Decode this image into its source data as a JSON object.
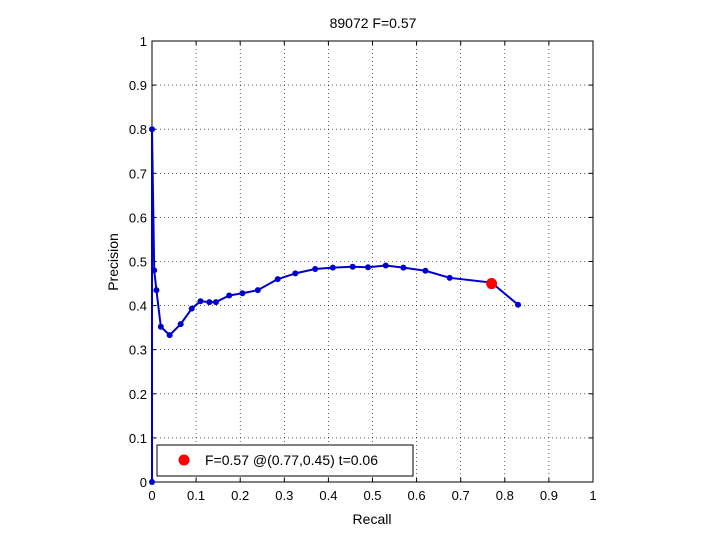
{
  "chart_data": {
    "type": "line",
    "title": "89072 F=0.57",
    "xlabel": "Recall",
    "ylabel": "Precision",
    "xlim": [
      0,
      1
    ],
    "ylim": [
      0,
      1
    ],
    "xticks": [
      "0",
      "0.1",
      "0.2",
      "0.3",
      "0.4",
      "0.5",
      "0.6",
      "0.7",
      "0.8",
      "0.9",
      "1"
    ],
    "yticks": [
      "0",
      "0.1",
      "0.2",
      "0.3",
      "0.4",
      "0.5",
      "0.6",
      "0.7",
      "0.8",
      "0.9",
      "1"
    ],
    "grid": true,
    "legend_position": "bottom-left",
    "series": [
      {
        "color": "#0000cc",
        "x": [
          0.0,
          0.0,
          0.005,
          0.01,
          0.02,
          0.04,
          0.065,
          0.09,
          0.11,
          0.13,
          0.145,
          0.175,
          0.205,
          0.24,
          0.285,
          0.325,
          0.37,
          0.41,
          0.455,
          0.49,
          0.53,
          0.57,
          0.62,
          0.675,
          0.77,
          0.83
        ],
        "y": [
          0.0,
          0.8,
          0.48,
          0.435,
          0.352,
          0.333,
          0.358,
          0.393,
          0.41,
          0.408,
          0.408,
          0.423,
          0.428,
          0.435,
          0.46,
          0.473,
          0.483,
          0.486,
          0.488,
          0.487,
          0.491,
          0.486,
          0.479,
          0.463,
          0.452,
          0.402
        ]
      }
    ],
    "best_point": {
      "x": 0.77,
      "y": 0.45,
      "color": "#ff0000"
    },
    "legend": {
      "text": "F=0.57 @(0.77,0.45) t=0.06"
    }
  }
}
